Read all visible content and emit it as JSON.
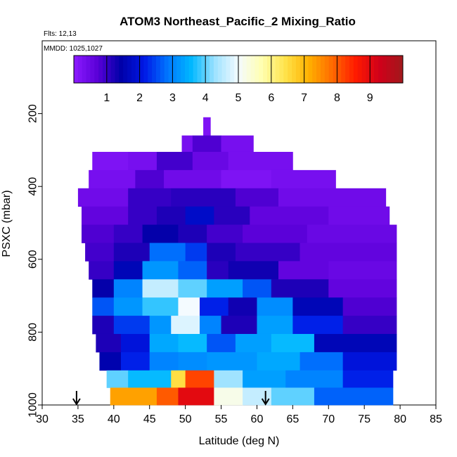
{
  "chart_data": {
    "type": "heatmap",
    "title": "ATOM3 Northeast_Pacific_2 Mixing_Ratio",
    "flights_label": "Flts: 12,13",
    "mmdd_label": "MMDD: 1025,1027",
    "xlabel": "Latitude (deg N)",
    "ylabel": "PSXC (mbar)",
    "xlim": [
      30,
      85
    ],
    "ylim": [
      1000,
      0
    ],
    "x_ticks": [
      30,
      35,
      40,
      45,
      50,
      55,
      60,
      65,
      70,
      75,
      80,
      85
    ],
    "y_ticks": [
      200,
      400,
      600,
      800,
      1000
    ],
    "colorbar": {
      "range": [
        0,
        10
      ],
      "ticks": [
        1,
        2,
        3,
        4,
        5,
        6,
        7,
        8,
        9
      ],
      "colors": [
        "#8c1aff",
        "#5a00d8",
        "#0000a8",
        "#0018e6",
        "#0077ff",
        "#00b8ff",
        "#9ee2ff",
        "#f4fbff",
        "#ffffb0",
        "#ffe34a",
        "#ffb000",
        "#ff6a00",
        "#ff1a00",
        "#d0001a",
        "#a0191c"
      ]
    },
    "arrows_at_latitude": [
      34.8,
      61.2
    ],
    "layers": [
      {
        "p": 240,
        "segments": [
          [
            52.5,
            53.5,
            0.2
          ]
        ]
      },
      {
        "p": 280,
        "segments": [
          [
            49.5,
            51,
            0.3
          ],
          [
            51,
            55,
            0.8
          ],
          [
            55,
            59.5,
            0.3
          ]
        ]
      },
      {
        "p": 330,
        "segments": [
          [
            37,
            42,
            0.2
          ],
          [
            42,
            46,
            0.3
          ],
          [
            46,
            51,
            0.9
          ],
          [
            51,
            56,
            0.5
          ],
          [
            56,
            65,
            0.3
          ]
        ]
      },
      {
        "p": 380,
        "segments": [
          [
            36.5,
            43,
            0.3
          ],
          [
            43,
            47,
            0.8
          ],
          [
            47,
            55,
            0.4
          ],
          [
            55,
            62,
            0.2
          ],
          [
            62,
            71,
            0.3
          ]
        ]
      },
      {
        "p": 430,
        "segments": [
          [
            35,
            42,
            0.4
          ],
          [
            42,
            48,
            1.0
          ],
          [
            48,
            57,
            1.1
          ],
          [
            57,
            63,
            0.8
          ],
          [
            63,
            78,
            0.4
          ]
        ]
      },
      {
        "p": 480,
        "segments": [
          [
            35.5,
            42,
            0.6
          ],
          [
            42,
            46,
            1.0
          ],
          [
            46,
            50,
            1.2
          ],
          [
            50,
            54,
            1.8
          ],
          [
            54,
            59,
            1.1
          ],
          [
            59,
            70,
            0.6
          ],
          [
            70,
            78.5,
            0.4
          ]
        ]
      },
      {
        "p": 530,
        "segments": [
          [
            35.5,
            40,
            0.8
          ],
          [
            40,
            44,
            1.0
          ],
          [
            44,
            49,
            1.4
          ],
          [
            49,
            53,
            1.2
          ],
          [
            53,
            58,
            0.9
          ],
          [
            58,
            67,
            0.7
          ],
          [
            67,
            79.5,
            0.5
          ]
        ]
      },
      {
        "p": 580,
        "segments": [
          [
            36,
            40,
            0.9
          ],
          [
            40,
            45,
            1.2
          ],
          [
            45,
            50,
            2.8
          ],
          [
            50,
            53,
            2.4
          ],
          [
            53,
            57,
            1.2
          ],
          [
            57,
            66,
            1.0
          ],
          [
            66,
            79.5,
            0.6
          ]
        ]
      },
      {
        "p": 630,
        "segments": [
          [
            36.5,
            40,
            1.0
          ],
          [
            40,
            44,
            1.6
          ],
          [
            44,
            49,
            3.2
          ],
          [
            49,
            53,
            2.7
          ],
          [
            53,
            56,
            1.1
          ],
          [
            56,
            63,
            1.3
          ],
          [
            63,
            70,
            0.6
          ],
          [
            70,
            79.5,
            0.5
          ]
        ]
      },
      {
        "p": 680,
        "segments": [
          [
            37,
            40,
            1.4
          ],
          [
            40,
            44,
            3.0
          ],
          [
            44,
            49,
            4.6
          ],
          [
            49,
            53,
            4.0
          ],
          [
            53,
            58,
            3.3
          ],
          [
            58,
            62,
            2.6
          ],
          [
            62,
            70,
            1.2
          ],
          [
            70,
            79.5,
            0.6
          ]
        ]
      },
      {
        "p": 730,
        "segments": [
          [
            37,
            40,
            2.6
          ],
          [
            40,
            44,
            3.2
          ],
          [
            44,
            49,
            3.8
          ],
          [
            49,
            52,
            5.0
          ],
          [
            52,
            56,
            2.2
          ],
          [
            56,
            60,
            1.3
          ],
          [
            60,
            65,
            3.1
          ],
          [
            65,
            72,
            1.6
          ],
          [
            72,
            79.5,
            0.8
          ]
        ]
      },
      {
        "p": 780,
        "segments": [
          [
            37,
            40,
            1.2
          ],
          [
            40,
            45,
            2.4
          ],
          [
            45,
            48,
            3.2
          ],
          [
            48,
            52,
            4.8
          ],
          [
            52,
            55,
            3.0
          ],
          [
            55,
            60,
            1.2
          ],
          [
            60,
            65,
            3.3
          ],
          [
            65,
            72,
            2.2
          ],
          [
            72,
            79.5,
            1.0
          ]
        ]
      },
      {
        "p": 830,
        "segments": [
          [
            37.5,
            41,
            1.2
          ],
          [
            41,
            45,
            2.0
          ],
          [
            45,
            49,
            3.4
          ],
          [
            49,
            53,
            3.6
          ],
          [
            53,
            57,
            2.6
          ],
          [
            57,
            62,
            3.3
          ],
          [
            62,
            68,
            3.6
          ],
          [
            68,
            79.5,
            1.6
          ]
        ]
      },
      {
        "p": 880,
        "segments": [
          [
            38,
            41,
            1.5
          ],
          [
            41,
            45,
            2.2
          ],
          [
            45,
            49,
            3.0
          ],
          [
            49,
            53,
            3.1
          ],
          [
            53,
            60,
            3.2
          ],
          [
            60,
            66,
            3.4
          ],
          [
            66,
            72,
            2.8
          ],
          [
            72,
            79.5,
            2.0
          ]
        ]
      },
      {
        "p": 930,
        "segments": [
          [
            39,
            42,
            4.0
          ],
          [
            42,
            48,
            3.6
          ],
          [
            48,
            50,
            6.5
          ],
          [
            50,
            54,
            8.2
          ],
          [
            54,
            58,
            4.3
          ],
          [
            58,
            64,
            3.3
          ],
          [
            64,
            72,
            3.0
          ],
          [
            72,
            79,
            2.2
          ]
        ]
      },
      {
        "p": 975,
        "segments": [
          [
            39.5,
            46,
            7.3
          ],
          [
            46,
            49,
            8.0
          ],
          [
            49,
            54,
            9.0
          ],
          [
            54,
            58,
            5.2
          ],
          [
            58,
            62,
            4.6
          ],
          [
            62,
            68,
            4.0
          ],
          [
            68,
            79,
            2.7
          ]
        ]
      }
    ]
  }
}
